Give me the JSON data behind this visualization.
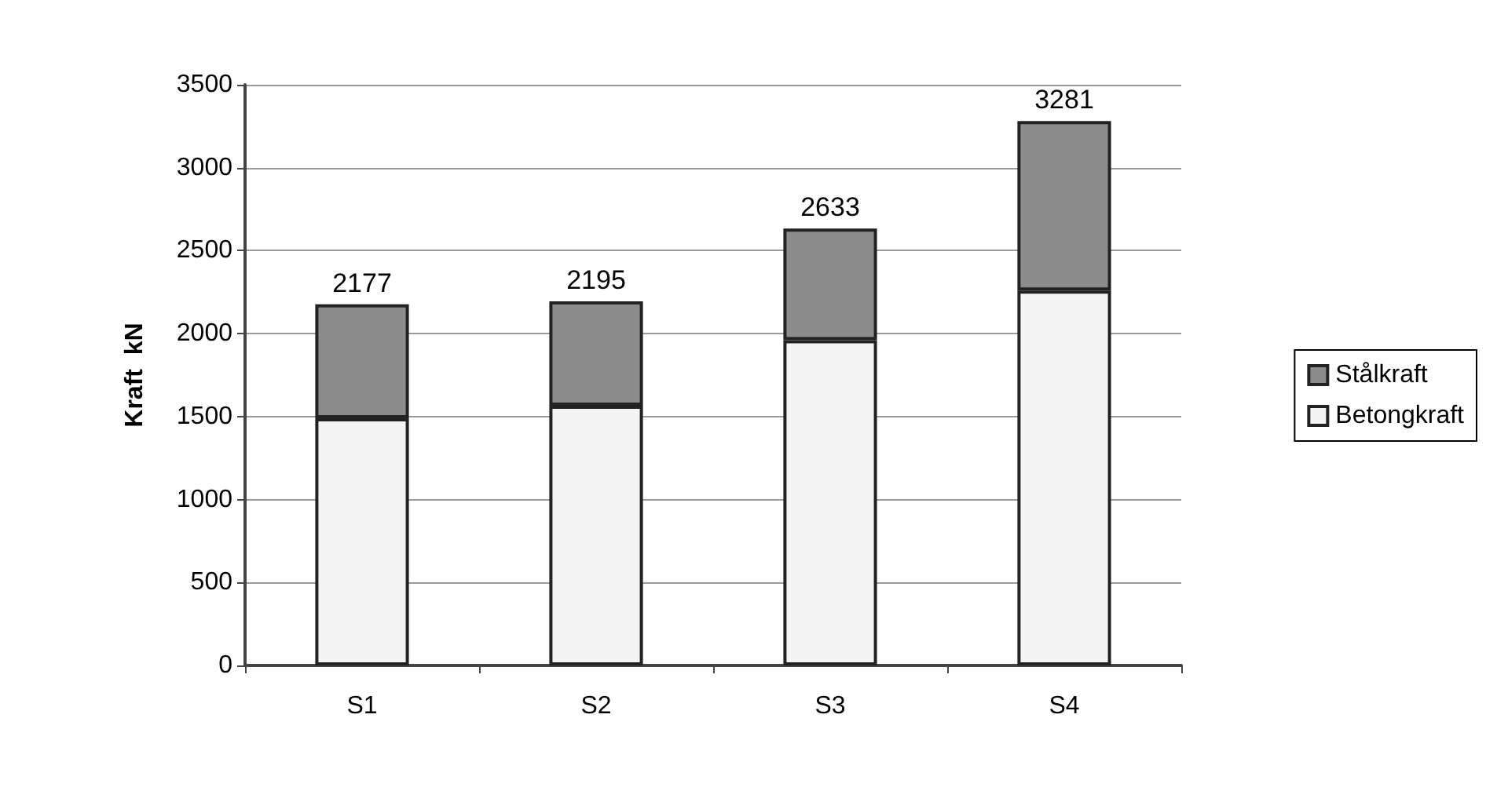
{
  "chart_data": {
    "type": "bar",
    "stacked": true,
    "ylabel": "Kraft  kN",
    "categories": [
      "S1",
      "S2",
      "S3",
      "S4"
    ],
    "series": [
      {
        "name": "Betongkraft",
        "color": "#f4f4f4",
        "values": [
          1490,
          1565,
          1960,
          2260
        ]
      },
      {
        "name": "Stålkraft",
        "color": "#8c8c8c",
        "values": [
          687,
          630,
          673,
          1021
        ]
      }
    ],
    "totals": [
      "2177",
      "2195",
      "2633",
      "3281"
    ],
    "ylim": [
      0,
      3500
    ],
    "yticks": [
      0,
      500,
      1000,
      1500,
      2000,
      2500,
      3000,
      3500
    ],
    "grid": "y",
    "legend": "right"
  }
}
